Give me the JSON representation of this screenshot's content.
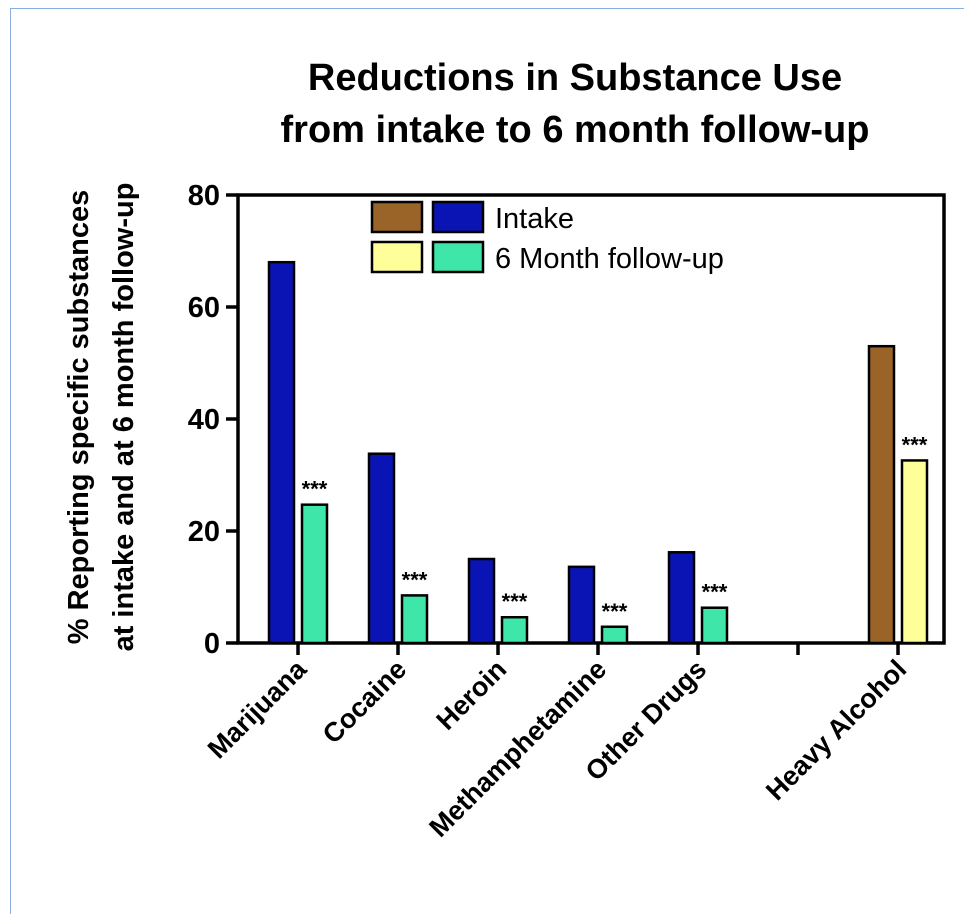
{
  "chart_data": {
    "type": "bar",
    "title_lines": [
      "Reductions in Substance Use",
      "from intake to 6 month follow-up"
    ],
    "ylabel_lines": [
      "% Reporting specific substances",
      "at intake and at 6 month follow-up"
    ],
    "xlabel": "",
    "ylim": [
      0,
      80
    ],
    "yticks": [
      0,
      20,
      40,
      60,
      80
    ],
    "categories": [
      "Marijuana",
      "Cocaine",
      "Heroin",
      "Methamphetamine",
      "Other Drugs",
      "Heavy Alcohol"
    ],
    "series": [
      {
        "name": "Intake",
        "values": [
          68,
          33.8,
          15,
          13.6,
          16.2,
          53
        ],
        "colors": [
          "#0a14b4",
          "#0a14b4",
          "#0a14b4",
          "#0a14b4",
          "#0a14b4",
          "#9a6428"
        ]
      },
      {
        "name": "6 Month follow-up",
        "values": [
          24.7,
          8.5,
          4.6,
          2.9,
          6.3,
          32.6
        ],
        "colors": [
          "#3ee6aa",
          "#3ee6aa",
          "#3ee6aa",
          "#3ee6aa",
          "#3ee6aa",
          "#ffff9a"
        ]
      }
    ],
    "significance": [
      "***",
      "***",
      "***",
      "***",
      "***",
      "***"
    ],
    "legend": {
      "position": "top-center",
      "entries": [
        {
          "label": "Intake",
          "colors": [
            "#9a6428",
            "#0a14b4"
          ]
        },
        {
          "label": "6 Month follow-up",
          "colors": [
            "#ffff9a",
            "#3ee6aa"
          ]
        }
      ]
    },
    "grid": false
  }
}
